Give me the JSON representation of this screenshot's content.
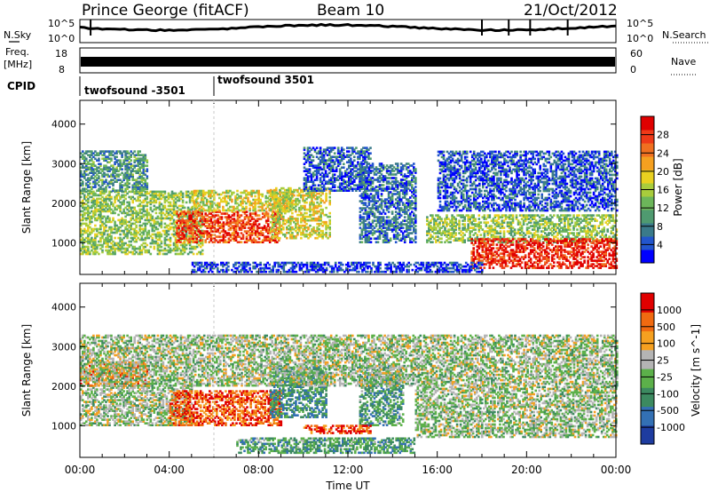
{
  "header": {
    "station": "Prince George (fitACF)",
    "beam": "Beam 10",
    "date": "21/Oct/2012"
  },
  "noise_panel": {
    "left_label": "N.Sky",
    "right_label": "N.Search",
    "ticks_left": [
      "10^5",
      "10^0"
    ],
    "ticks_right": [
      "10^5",
      "10^0"
    ]
  },
  "freq_panel": {
    "left_label_1": "Freq.",
    "left_label_2": "[MHz]",
    "left_ticks": [
      "18",
      "8"
    ],
    "right_label": "Nave",
    "right_ticks": [
      "60",
      "0"
    ]
  },
  "cpid": {
    "label": "CPID",
    "modes": [
      {
        "name": "twofsound -3501",
        "start_hour": 0
      },
      {
        "name": "twofsound 3501",
        "start_hour": 6
      }
    ]
  },
  "x_axis": {
    "title": "Time UT",
    "ticks": [
      "00:00",
      "04:00",
      "08:00",
      "12:00",
      "16:00",
      "20:00",
      "00:00"
    ]
  },
  "chart_data": [
    {
      "type": "heatmap",
      "title": "Power",
      "xlabel": "Time UT",
      "ylabel": "Slant Range [km]",
      "xlim_hours": [
        0,
        24
      ],
      "ylim_km": [
        200,
        4600
      ],
      "yticks": [
        "4000",
        "3000",
        "2000",
        "1000"
      ],
      "colorbar": {
        "label": "Power [dB]",
        "ticks": [
          "28",
          "24",
          "20",
          "16",
          "12",
          "8",
          "4"
        ],
        "colors": [
          "#0000ff",
          "#2255cc",
          "#3a7a8a",
          "#4f9a70",
          "#6cb65a",
          "#a8cc3c",
          "#e8d020",
          "#f5a020",
          "#f07020",
          "#ee3a18",
          "#e00000"
        ]
      },
      "regions": [
        {
          "t0": 0.0,
          "t1": 5.5,
          "r0": 700,
          "r1": 2300,
          "level": 0.45
        },
        {
          "t0": 0.0,
          "t1": 3.0,
          "r0": 2300,
          "r1": 3300,
          "level": 0.3
        },
        {
          "t0": 4.3,
          "t1": 9.0,
          "r0": 1000,
          "r1": 1800,
          "level": 0.85
        },
        {
          "t0": 5.0,
          "t1": 9.5,
          "r0": 1800,
          "r1": 2300,
          "level": 0.55
        },
        {
          "t0": 8.5,
          "t1": 11.2,
          "r0": 1100,
          "r1": 2400,
          "level": 0.55
        },
        {
          "t0": 10.0,
          "t1": 13.0,
          "r0": 2300,
          "r1": 3400,
          "level": 0.15
        },
        {
          "t0": 12.5,
          "t1": 15.0,
          "r0": 1000,
          "r1": 3000,
          "level": 0.2
        },
        {
          "t0": 15.5,
          "t1": 24.0,
          "r0": 1000,
          "r1": 1700,
          "level": 0.45
        },
        {
          "t0": 17.5,
          "t1": 24.0,
          "r0": 350,
          "r1": 1100,
          "level": 0.92
        },
        {
          "t0": 5.0,
          "t1": 18.0,
          "r0": 250,
          "r1": 500,
          "level": 0.1
        },
        {
          "t0": 16.0,
          "t1": 24.0,
          "r0": 1800,
          "r1": 3300,
          "level": 0.15
        }
      ]
    },
    {
      "type": "heatmap",
      "title": "Velocity",
      "xlabel": "Time UT",
      "ylabel": "Slant Range [km]",
      "xlim_hours": [
        0,
        24
      ],
      "ylim_km": [
        200,
        4600
      ],
      "yticks": [
        "4000",
        "3000",
        "2000",
        "1000"
      ],
      "colorbar": {
        "label": "Velocity [m s^-1]",
        "ticks": [
          "1000",
          "500",
          "100",
          "25",
          "-25",
          "-100",
          "-500",
          "-1000"
        ],
        "colors": [
          "#1e3ca0",
          "#3370b4",
          "#3c8a60",
          "#5cb04a",
          "#b4b4b4",
          "#f5a020",
          "#f06a10",
          "#e00000"
        ]
      },
      "regions": [
        {
          "t0": 0.0,
          "t1": 5.0,
          "r0": 1000,
          "r1": 2000,
          "level": 0.5
        },
        {
          "t0": 0.0,
          "t1": 3.0,
          "r0": 2000,
          "r1": 2600,
          "level": 0.78
        },
        {
          "t0": 4.0,
          "t1": 9.0,
          "r0": 1000,
          "r1": 1900,
          "level": 0.85
        },
        {
          "t0": 8.5,
          "t1": 11.0,
          "r0": 1200,
          "r1": 2500,
          "level": 0.3
        },
        {
          "t0": 12.5,
          "t1": 14.5,
          "r0": 1000,
          "r1": 2500,
          "level": 0.35
        },
        {
          "t0": 15.0,
          "t1": 24.0,
          "r0": 700,
          "r1": 2000,
          "level": 0.5
        },
        {
          "t0": 0.0,
          "t1": 24.0,
          "r0": 2000,
          "r1": 3300,
          "level": 0.5
        },
        {
          "t0": 7.0,
          "t1": 15.0,
          "r0": 300,
          "r1": 700,
          "level": 0.35
        },
        {
          "t0": 10.0,
          "t1": 13.0,
          "r0": 800,
          "r1": 1000,
          "level": 0.85
        }
      ]
    }
  ]
}
